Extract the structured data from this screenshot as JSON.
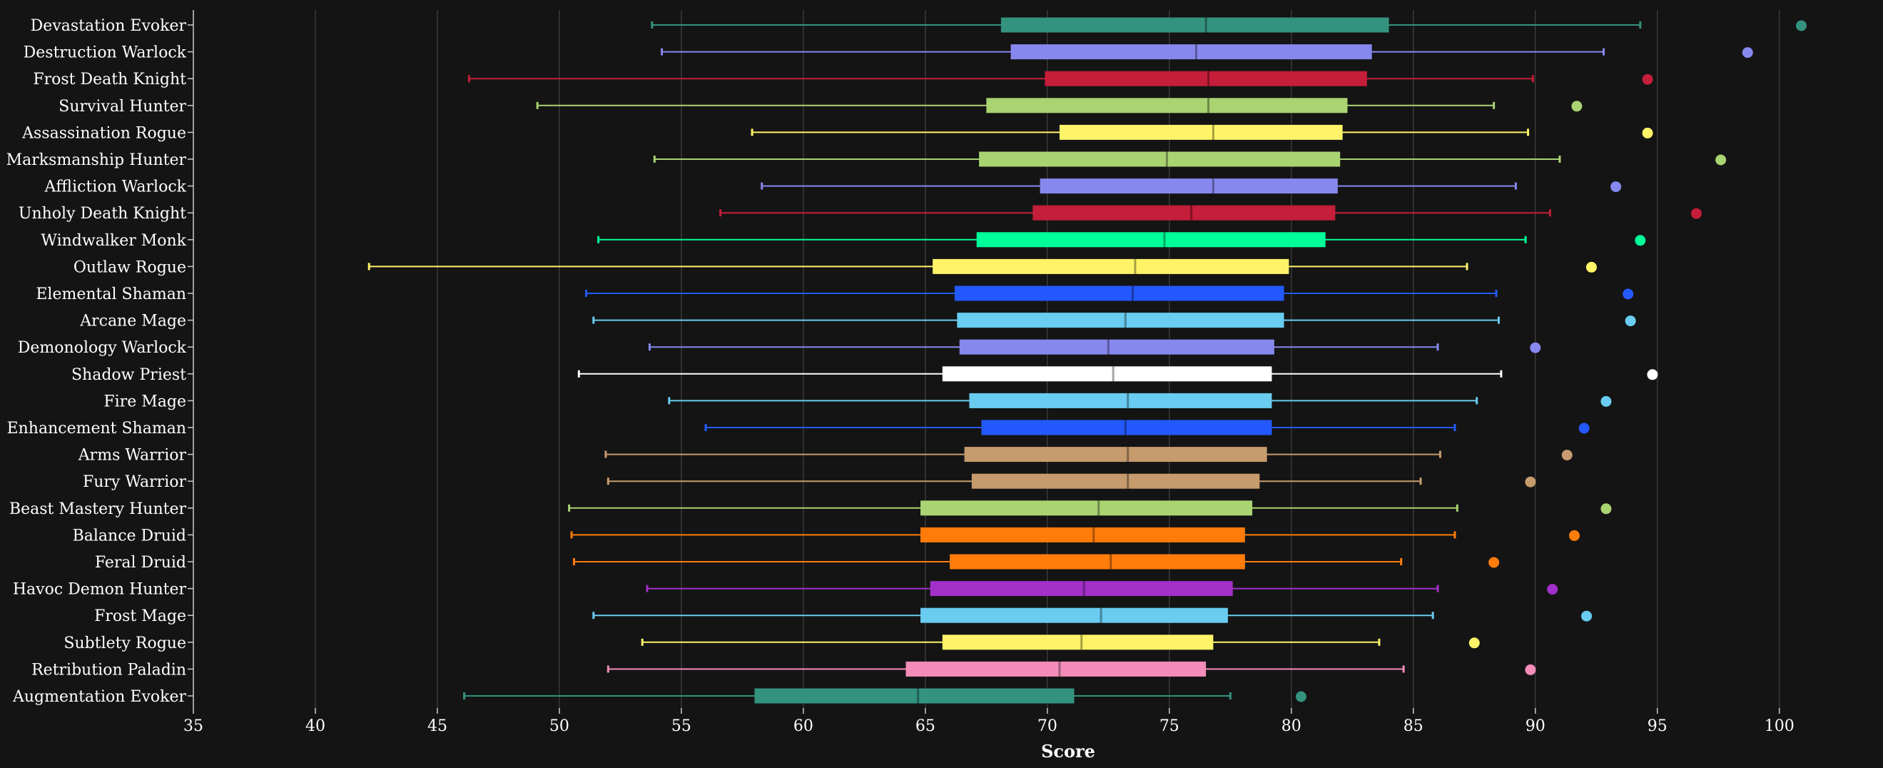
{
  "chart_data": {
    "type": "boxplot",
    "title": "",
    "xlabel": "Score",
    "ylabel": "",
    "xlim": [
      35,
      101.5
    ],
    "x_ticks": [
      35,
      40,
      45,
      50,
      55,
      60,
      65,
      70,
      75,
      80,
      85,
      90,
      95,
      100
    ],
    "grid": "vertical",
    "categories": [
      "Devastation Evoker",
      "Destruction Warlock",
      "Frost Death Knight",
      "Survival Hunter",
      "Assassination Rogue",
      "Marksmanship Hunter",
      "Affliction Warlock",
      "Unholy Death Knight",
      "Windwalker Monk",
      "Outlaw Rogue",
      "Elemental Shaman",
      "Arcane Mage",
      "Demonology Warlock",
      "Shadow Priest",
      "Fire Mage",
      "Enhancement Shaman",
      "Arms Warrior",
      "Fury Warrior",
      "Beast Mastery Hunter",
      "Balance Druid",
      "Feral Druid",
      "Havoc Demon Hunter",
      "Frost Mage",
      "Subtlety Rogue",
      "Retribution Paladin",
      "Augmentation Evoker"
    ],
    "series": [
      {
        "min": 53.8,
        "q1": 68.1,
        "median": 76.5,
        "q3": 84.0,
        "max": 94.3,
        "outlier": 100.9,
        "color": "#33937f"
      },
      {
        "min": 54.2,
        "q1": 68.5,
        "median": 76.1,
        "q3": 83.3,
        "max": 92.8,
        "outlier": 98.7,
        "color": "#8788ee"
      },
      {
        "min": 46.3,
        "q1": 69.9,
        "median": 76.6,
        "q3": 83.1,
        "max": 89.9,
        "outlier": 94.6,
        "color": "#c41e3a"
      },
      {
        "min": 49.1,
        "q1": 67.5,
        "median": 76.6,
        "q3": 82.3,
        "max": 88.3,
        "outlier": 91.7,
        "color": "#aad372"
      },
      {
        "min": 57.9,
        "q1": 70.5,
        "median": 76.8,
        "q3": 82.1,
        "max": 89.7,
        "outlier": 94.6,
        "color": "#fff468"
      },
      {
        "min": 53.9,
        "q1": 67.2,
        "median": 74.9,
        "q3": 82.0,
        "max": 91.0,
        "outlier": 97.6,
        "color": "#aad372"
      },
      {
        "min": 58.3,
        "q1": 69.7,
        "median": 76.8,
        "q3": 81.9,
        "max": 89.2,
        "outlier": 93.3,
        "color": "#8788ee"
      },
      {
        "min": 56.6,
        "q1": 69.4,
        "median": 75.9,
        "q3": 81.8,
        "max": 90.6,
        "outlier": 96.6,
        "color": "#c41e3a"
      },
      {
        "min": 51.6,
        "q1": 67.1,
        "median": 74.8,
        "q3": 81.4,
        "max": 89.6,
        "outlier": 94.3,
        "color": "#00ff98"
      },
      {
        "min": 42.2,
        "q1": 65.3,
        "median": 73.6,
        "q3": 79.9,
        "max": 87.2,
        "outlier": 92.3,
        "color": "#fff468"
      },
      {
        "min": 51.1,
        "q1": 66.2,
        "median": 73.5,
        "q3": 79.7,
        "max": 88.4,
        "outlier": 93.8,
        "color": "#2459ff"
      },
      {
        "min": 51.4,
        "q1": 66.3,
        "median": 73.2,
        "q3": 79.7,
        "max": 88.5,
        "outlier": 93.9,
        "color": "#69ccf0"
      },
      {
        "min": 53.7,
        "q1": 66.4,
        "median": 72.5,
        "q3": 79.3,
        "max": 86.0,
        "outlier": 90.0,
        "color": "#8788ee"
      },
      {
        "min": 50.8,
        "q1": 65.7,
        "median": 72.7,
        "q3": 79.2,
        "max": 88.6,
        "outlier": 94.8,
        "color": "#ffffff"
      },
      {
        "min": 54.5,
        "q1": 66.8,
        "median": 73.3,
        "q3": 79.2,
        "max": 87.6,
        "outlier": 92.9,
        "color": "#69ccf0"
      },
      {
        "min": 56.0,
        "q1": 67.3,
        "median": 73.2,
        "q3": 79.2,
        "max": 86.7,
        "outlier": 92.0,
        "color": "#2459ff"
      },
      {
        "min": 51.9,
        "q1": 66.6,
        "median": 73.3,
        "q3": 79.0,
        "max": 86.1,
        "outlier": 91.3,
        "color": "#c69b6d"
      },
      {
        "min": 52.0,
        "q1": 66.9,
        "median": 73.3,
        "q3": 78.7,
        "max": 85.3,
        "outlier": 89.8,
        "color": "#c69b6d"
      },
      {
        "min": 50.4,
        "q1": 64.8,
        "median": 72.1,
        "q3": 78.4,
        "max": 86.8,
        "outlier": 92.9,
        "color": "#aad372"
      },
      {
        "min": 50.5,
        "q1": 64.8,
        "median": 71.9,
        "q3": 78.1,
        "max": 86.7,
        "outlier": 91.6,
        "color": "#ff7c0a"
      },
      {
        "min": 50.6,
        "q1": 66.0,
        "median": 72.6,
        "q3": 78.1,
        "max": 84.5,
        "outlier": 88.3,
        "color": "#ff7c0a"
      },
      {
        "min": 53.6,
        "q1": 65.2,
        "median": 71.5,
        "q3": 77.6,
        "max": 86.0,
        "outlier": 90.7,
        "color": "#a330c9"
      },
      {
        "min": 51.4,
        "q1": 64.8,
        "median": 72.2,
        "q3": 77.4,
        "max": 85.8,
        "outlier": 92.1,
        "color": "#69ccf0"
      },
      {
        "min": 53.4,
        "q1": 65.7,
        "median": 71.4,
        "q3": 76.8,
        "max": 83.6,
        "outlier": 87.5,
        "color": "#fff468"
      },
      {
        "min": 52.0,
        "q1": 64.2,
        "median": 70.5,
        "q3": 76.5,
        "max": 84.6,
        "outlier": 89.8,
        "color": "#f48cba"
      },
      {
        "min": 46.1,
        "q1": 58.0,
        "median": 64.7,
        "q3": 71.1,
        "max": 77.5,
        "outlier": 80.4,
        "color": "#33937f"
      }
    ]
  }
}
